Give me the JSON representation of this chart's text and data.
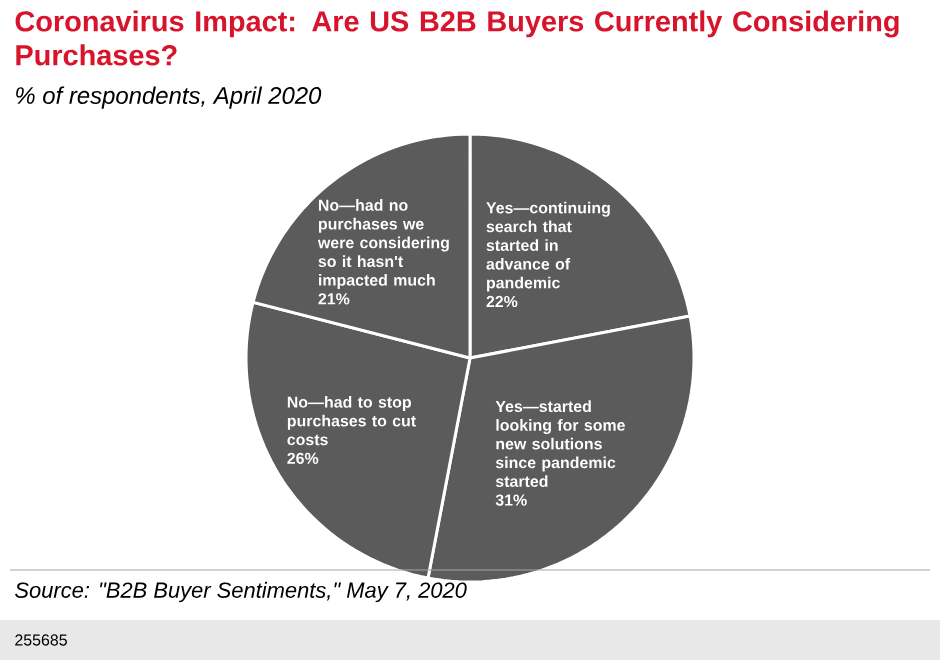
{
  "chart_data": {
    "type": "pie",
    "title": "Coronavirus Impact: Are US B2B Buyers Currently Considering Purchases?",
    "subtitle": "% of respondents, April 2020",
    "categories": [
      "Yes—continuing search that started in advance of pandemic",
      "Yes—started looking for some new solutions since pandemic started",
      "No—had to stop purchases to cut costs",
      "No—had no purchases we were considering so it hasn't impacted much"
    ],
    "values": [
      22,
      31,
      26,
      21
    ],
    "value_labels": [
      "22%",
      "31%",
      "26%",
      "21%"
    ],
    "colors": [
      "#5b5b5b",
      "#5b5b5b",
      "#5b5b5b",
      "#5b5b5b"
    ],
    "annotations": [
      "Source: \"B2B Buyer Sentiments,\" May 7, 2020",
      "255685"
    ]
  }
}
